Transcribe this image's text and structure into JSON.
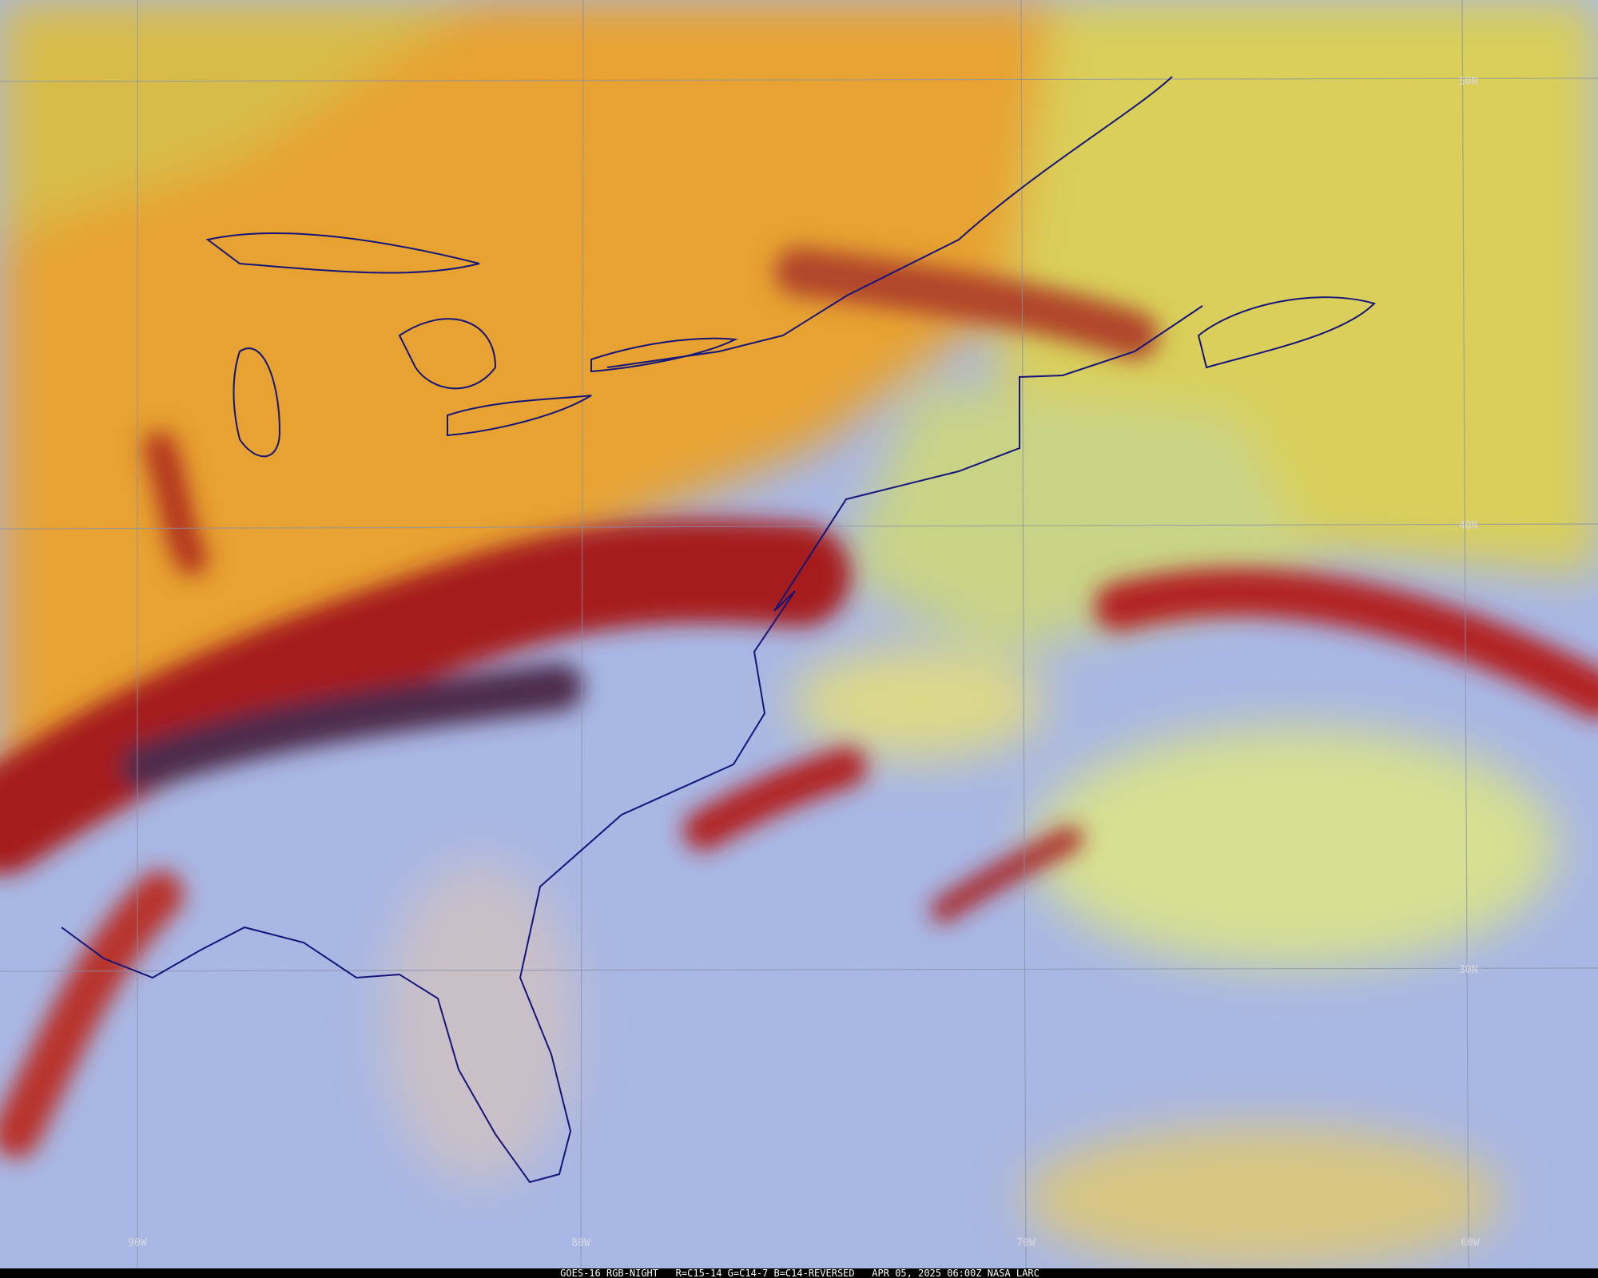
{
  "grid_labels": {
    "latitudes": [
      "50N",
      "40N",
      "30N"
    ],
    "longitudes": [
      "90W",
      "80W",
      "70W",
      "60W"
    ]
  },
  "footer": "GOES-16 RGB-NIGHT   R=C15-14 G=C14-7 B=C14-REVERSED   APR 05, 2025 06:00Z NASA LARC"
}
